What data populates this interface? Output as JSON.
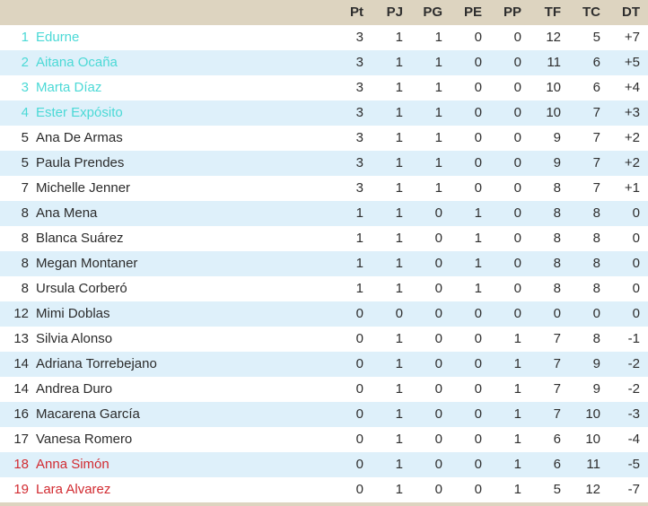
{
  "table": {
    "columns": [
      "Pt",
      "PJ",
      "PG",
      "PE",
      "PP",
      "TF",
      "TC",
      "DT"
    ],
    "rows": [
      {
        "pos": "1",
        "name": "Edurne",
        "tier": "qualified",
        "stats": [
          "3",
          "1",
          "1",
          "0",
          "0",
          "12",
          "5",
          "+7"
        ]
      },
      {
        "pos": "2",
        "name": "Aitana Ocaña",
        "tier": "qualified",
        "stats": [
          "3",
          "1",
          "1",
          "0",
          "0",
          "11",
          "6",
          "+5"
        ]
      },
      {
        "pos": "3",
        "name": "Marta Díaz",
        "tier": "qualified",
        "stats": [
          "3",
          "1",
          "1",
          "0",
          "0",
          "10",
          "6",
          "+4"
        ]
      },
      {
        "pos": "4",
        "name": "Ester Expósito",
        "tier": "qualified",
        "stats": [
          "3",
          "1",
          "1",
          "0",
          "0",
          "10",
          "7",
          "+3"
        ]
      },
      {
        "pos": "5",
        "name": "Ana De Armas",
        "tier": "normal",
        "stats": [
          "3",
          "1",
          "1",
          "0",
          "0",
          "9",
          "7",
          "+2"
        ]
      },
      {
        "pos": "5",
        "name": "Paula Prendes",
        "tier": "normal",
        "stats": [
          "3",
          "1",
          "1",
          "0",
          "0",
          "9",
          "7",
          "+2"
        ]
      },
      {
        "pos": "7",
        "name": "Michelle Jenner",
        "tier": "normal",
        "stats": [
          "3",
          "1",
          "1",
          "0",
          "0",
          "8",
          "7",
          "+1"
        ]
      },
      {
        "pos": "8",
        "name": "Ana Mena",
        "tier": "normal",
        "stats": [
          "1",
          "1",
          "0",
          "1",
          "0",
          "8",
          "8",
          "0"
        ]
      },
      {
        "pos": "8",
        "name": "Blanca Suárez",
        "tier": "normal",
        "stats": [
          "1",
          "1",
          "0",
          "1",
          "0",
          "8",
          "8",
          "0"
        ]
      },
      {
        "pos": "8",
        "name": "Megan Montaner",
        "tier": "normal",
        "stats": [
          "1",
          "1",
          "0",
          "1",
          "0",
          "8",
          "8",
          "0"
        ]
      },
      {
        "pos": "8",
        "name": "Ursula Corberó",
        "tier": "normal",
        "stats": [
          "1",
          "1",
          "0",
          "1",
          "0",
          "8",
          "8",
          "0"
        ]
      },
      {
        "pos": "12",
        "name": "Mimi Doblas",
        "tier": "normal",
        "stats": [
          "0",
          "0",
          "0",
          "0",
          "0",
          "0",
          "0",
          "0"
        ]
      },
      {
        "pos": "13",
        "name": "Silvia Alonso",
        "tier": "normal",
        "stats": [
          "0",
          "1",
          "0",
          "0",
          "1",
          "7",
          "8",
          "-1"
        ]
      },
      {
        "pos": "14",
        "name": "Adriana Torrebejano",
        "tier": "normal",
        "stats": [
          "0",
          "1",
          "0",
          "0",
          "1",
          "7",
          "9",
          "-2"
        ]
      },
      {
        "pos": "14",
        "name": "Andrea Duro",
        "tier": "normal",
        "stats": [
          "0",
          "1",
          "0",
          "0",
          "1",
          "7",
          "9",
          "-2"
        ]
      },
      {
        "pos": "16",
        "name": "Macarena García",
        "tier": "normal",
        "stats": [
          "0",
          "1",
          "0",
          "0",
          "1",
          "7",
          "10",
          "-3"
        ]
      },
      {
        "pos": "17",
        "name": "Vanesa Romero",
        "tier": "normal",
        "stats": [
          "0",
          "1",
          "0",
          "0",
          "1",
          "6",
          "10",
          "-4"
        ]
      },
      {
        "pos": "18",
        "name": "Anna Simón",
        "tier": "relegation",
        "stats": [
          "0",
          "1",
          "0",
          "0",
          "1",
          "6",
          "11",
          "-5"
        ]
      },
      {
        "pos": "19",
        "name": "Lara Alvarez",
        "tier": "relegation",
        "stats": [
          "0",
          "1",
          "0",
          "0",
          "1",
          "5",
          "12",
          "-7"
        ]
      }
    ]
  },
  "colors": {
    "header_background": "#ddd4c0",
    "row_stripe": "#def0fa",
    "qualified_text": "#4bd9d6",
    "relegation_text": "#d22b31",
    "normal_text": "#2b2b2b"
  }
}
